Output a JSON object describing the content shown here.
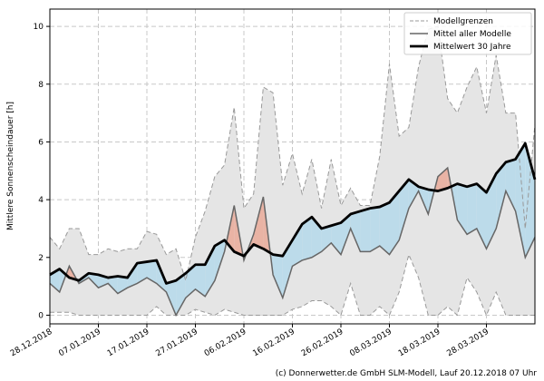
{
  "chart_data": {
    "type": "range-line",
    "y_label": "Mittlere Sonnenscheindauer [h]",
    "footer": "(c) Donnerwetter.de GmbH SLM-Modell, Lauf 20.12.2018 07 Uhr",
    "x": [
      "2018-12-28",
      "2018-12-30",
      "2019-01-01",
      "2019-01-03",
      "2019-01-05",
      "2019-01-07",
      "2019-01-09",
      "2019-01-11",
      "2019-01-13",
      "2019-01-15",
      "2019-01-17",
      "2019-01-19",
      "2019-01-21",
      "2019-01-23",
      "2019-01-25",
      "2019-01-27",
      "2019-01-29",
      "2019-01-31",
      "2019-02-02",
      "2019-02-04",
      "2019-02-06",
      "2019-02-08",
      "2019-02-10",
      "2019-02-12",
      "2019-02-14",
      "2019-02-16",
      "2019-02-18",
      "2019-02-20",
      "2019-02-22",
      "2019-02-24",
      "2019-02-26",
      "2019-02-28",
      "2019-03-02",
      "2019-03-04",
      "2019-03-06",
      "2019-03-08",
      "2019-03-10",
      "2019-03-12",
      "2019-03-14",
      "2019-03-16",
      "2019-03-18",
      "2019-03-20",
      "2019-03-22",
      "2019-03-24",
      "2019-03-26",
      "2019-03-28",
      "2019-03-30",
      "2019-04-01",
      "2019-04-03",
      "2019-04-05",
      "2019-04-07"
    ],
    "xlim": [
      "2018-12-28",
      "2019-04-07"
    ],
    "xticks": [
      {
        "value": "2018-12-28",
        "label": "28.12.2018"
      },
      {
        "value": "2019-01-07",
        "label": "07.01.2019"
      },
      {
        "value": "2019-01-17",
        "label": "17.01.2019"
      },
      {
        "value": "2019-01-27",
        "label": "27.01.2019"
      },
      {
        "value": "2019-02-06",
        "label": "06.02.2019"
      },
      {
        "value": "2019-02-16",
        "label": "16.02.2019"
      },
      {
        "value": "2019-02-26",
        "label": "26.02.2019"
      },
      {
        "value": "2019-03-08",
        "label": "08.03.2019"
      },
      {
        "value": "2019-03-18",
        "label": "18.03.2019"
      },
      {
        "value": "2019-03-28",
        "label": "28.03.2019"
      }
    ],
    "ylim": [
      -0.3,
      10.6
    ],
    "yticks": [
      0,
      2,
      4,
      6,
      8,
      10
    ],
    "grid": true,
    "legend": "upper right",
    "above_color": "#e9b3a4",
    "below_color": "#bcdbea",
    "series": [
      {
        "name": "Modellgrenzen",
        "color": "#999999",
        "fill": "#e5e5e5",
        "upper": [
          2.7,
          2.3,
          3.0,
          3.0,
          2.1,
          2.1,
          2.3,
          2.2,
          2.3,
          2.3,
          2.9,
          2.8,
          2.1,
          2.3,
          1.2,
          2.7,
          3.6,
          4.8,
          5.2,
          7.2,
          3.7,
          4.2,
          7.9,
          7.7,
          4.5,
          5.6,
          4.2,
          5.4,
          3.7,
          5.4,
          3.8,
          4.4,
          3.8,
          3.8,
          5.5,
          8.7,
          6.2,
          6.5,
          8.6,
          9.9,
          10.0,
          7.5,
          7.0,
          7.9,
          8.6,
          7.0,
          9.0,
          7.0,
          7.0,
          3.0,
          6.6
        ],
        "lower": [
          0.1,
          0.1,
          0.1,
          0.0,
          0.0,
          0.0,
          0.0,
          0.0,
          0.0,
          0.0,
          0.0,
          0.3,
          0.0,
          0.0,
          0.0,
          0.2,
          0.1,
          0.0,
          0.2,
          0.1,
          0.0,
          0.0,
          0.0,
          0.0,
          0.0,
          0.2,
          0.3,
          0.5,
          0.5,
          0.3,
          0.0,
          1.1,
          0.0,
          0.0,
          0.3,
          0.0,
          0.8,
          2.1,
          1.3,
          0.0,
          0.0,
          0.3,
          0.0,
          1.3,
          0.8,
          0.0,
          0.8,
          0.0,
          0.0,
          0.0,
          0.0
        ]
      },
      {
        "name": "Mittel aller Modelle",
        "color": "#666666",
        "values": [
          1.1,
          0.8,
          1.7,
          1.1,
          1.3,
          0.95,
          1.1,
          0.75,
          0.95,
          1.1,
          1.3,
          1.1,
          0.8,
          0.0,
          0.6,
          0.9,
          0.65,
          1.2,
          2.2,
          3.8,
          1.9,
          2.8,
          4.1,
          1.4,
          0.6,
          1.7,
          1.9,
          2.0,
          2.2,
          2.5,
          2.1,
          3.0,
          2.2,
          2.2,
          2.4,
          2.1,
          2.6,
          3.7,
          4.3,
          3.5,
          4.8,
          5.1,
          3.3,
          2.8,
          3.0,
          2.3,
          3.0,
          4.3,
          3.6,
          2.0,
          2.7
        ]
      },
      {
        "name": "Mittelwert 30 Jahre",
        "color": "#000000",
        "values": [
          1.4,
          1.6,
          1.3,
          1.2,
          1.45,
          1.4,
          1.3,
          1.35,
          1.3,
          1.8,
          1.85,
          1.9,
          1.1,
          1.2,
          1.45,
          1.75,
          1.75,
          2.4,
          2.6,
          2.2,
          2.05,
          2.45,
          2.3,
          2.1,
          2.05,
          2.6,
          3.15,
          3.4,
          3.0,
          3.1,
          3.2,
          3.5,
          3.6,
          3.7,
          3.75,
          3.9,
          4.3,
          4.7,
          4.45,
          4.35,
          4.3,
          4.4,
          4.55,
          4.45,
          4.55,
          4.25,
          4.9,
          5.3,
          5.4,
          5.95,
          4.7
        ]
      }
    ]
  }
}
